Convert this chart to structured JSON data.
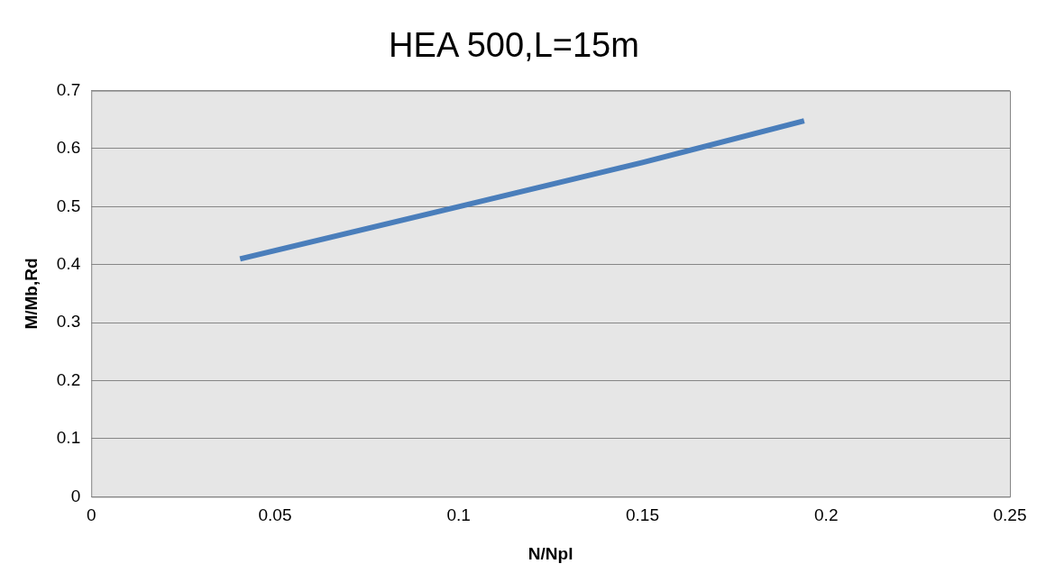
{
  "chart_data": {
    "type": "line",
    "title": "HEA 500,L=15m",
    "xlabel": "N/Npl",
    "ylabel": "M/Mb,Rd",
    "x": [
      0.0405,
      0.1,
      0.15,
      0.194
    ],
    "series": [
      {
        "color": "#4a7ebb",
        "values": [
          0.41,
          0.5,
          0.576,
          0.648
        ]
      }
    ],
    "xlim": [
      0,
      0.25
    ],
    "xticks": [
      0,
      0.05,
      0.1,
      0.15,
      0.2,
      0.25
    ],
    "ylim": [
      0,
      0.7
    ],
    "yticks": [
      0,
      0.1,
      0.2,
      0.3,
      0.4,
      0.5,
      0.6,
      0.7
    ],
    "grid": "y",
    "legend": false,
    "marker": "none",
    "line_style": "solid"
  }
}
